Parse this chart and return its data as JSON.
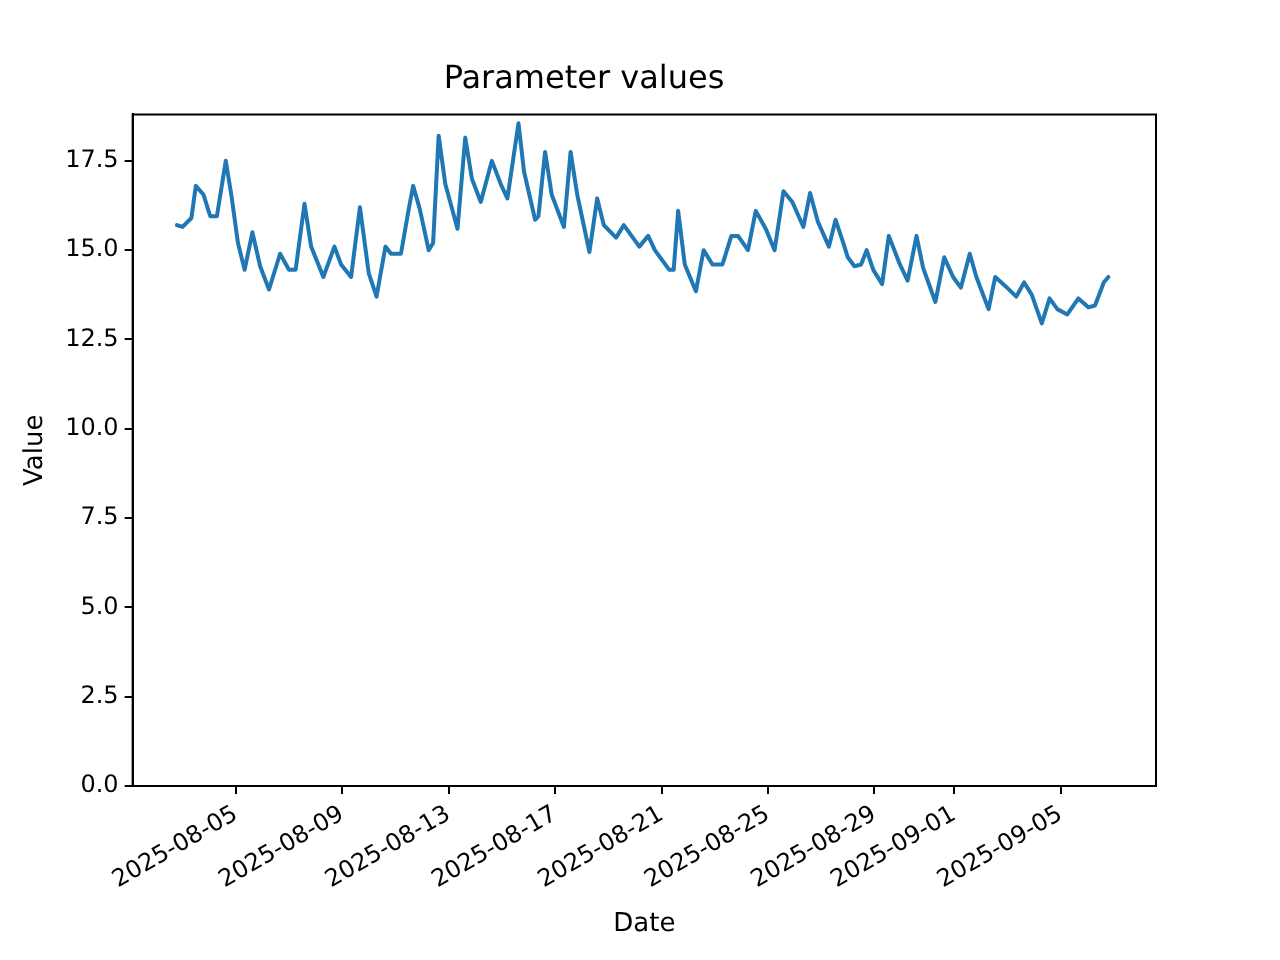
{
  "chart_data": {
    "type": "line",
    "title": "Parameter values",
    "xlabel": "Date",
    "ylabel": "Value",
    "x": [
      "2025-08-02T19:00",
      "2025-08-03T00:00",
      "2025-08-03T08:00",
      "2025-08-03T12:00",
      "2025-08-03T19:00",
      "2025-08-04T01:00",
      "2025-08-04T07:00",
      "2025-08-04T15:00",
      "2025-08-04T20:00",
      "2025-08-05T02:00",
      "2025-08-05T08:00",
      "2025-08-05T15:00",
      "2025-08-05T22:00",
      "2025-08-06T06:00",
      "2025-08-06T16:00",
      "2025-08-07T00:00",
      "2025-08-07T06:00",
      "2025-08-07T14:00",
      "2025-08-07T20:00",
      "2025-08-08T07:00",
      "2025-08-08T17:00",
      "2025-08-08T23:00",
      "2025-08-09T08:00",
      "2025-08-09T16:00",
      "2025-08-10T00:00",
      "2025-08-10T07:00",
      "2025-08-10T15:00",
      "2025-08-10T20:00",
      "2025-08-11T05:00",
      "2025-08-11T12:00",
      "2025-08-11T16:00",
      "2025-08-11T22:00",
      "2025-08-12T06:00",
      "2025-08-12T10:00",
      "2025-08-12T15:00",
      "2025-08-12T21:00",
      "2025-08-13T08:00",
      "2025-08-13T15:00",
      "2025-08-13T21:00",
      "2025-08-14T05:00",
      "2025-08-14T15:00",
      "2025-08-14T23:00",
      "2025-08-15T05:00",
      "2025-08-15T15:00",
      "2025-08-15T20:00",
      "2025-08-16T06:00",
      "2025-08-16T09:00",
      "2025-08-16T15:00",
      "2025-08-16T21:00",
      "2025-08-17T08:00",
      "2025-08-17T14:00",
      "2025-08-17T20:00",
      "2025-08-18T07:00",
      "2025-08-18T14:00",
      "2025-08-18T20:00",
      "2025-08-19T07:00",
      "2025-08-19T14:00",
      "2025-08-19T21:00",
      "2025-08-20T04:00",
      "2025-08-20T12:00",
      "2025-08-20T18:00",
      "2025-08-21T07:00",
      "2025-08-21T11:00",
      "2025-08-21T15:00",
      "2025-08-21T21:00",
      "2025-08-22T07:00",
      "2025-08-22T14:00",
      "2025-08-22T22:00",
      "2025-08-23T07:00",
      "2025-08-23T15:00",
      "2025-08-23T21:00",
      "2025-08-24T06:00",
      "2025-08-24T13:00",
      "2025-08-24T22:00",
      "2025-08-25T06:00",
      "2025-08-25T14:00",
      "2025-08-25T22:00",
      "2025-08-26T08:00",
      "2025-08-26T14:00",
      "2025-08-26T21:00",
      "2025-08-27T07:00",
      "2025-08-27T13:00",
      "2025-08-27T20:00",
      "2025-08-28T00:00",
      "2025-08-28T06:00",
      "2025-08-28T12:00",
      "2025-08-28T17:00",
      "2025-08-28T23:00",
      "2025-08-29T07:00",
      "2025-08-29T13:00",
      "2025-08-29T23:00",
      "2025-08-30T06:00",
      "2025-08-30T14:00",
      "2025-08-30T20:00",
      "2025-08-31T07:00",
      "2025-08-31T15:00",
      "2025-08-31T23:00",
      "2025-09-01T06:00",
      "2025-09-01T14:00",
      "2025-09-01T20:00",
      "2025-09-02T07:00",
      "2025-09-02T13:00",
      "2025-09-02T22:00",
      "2025-09-03T08:00",
      "2025-09-03T15:00",
      "2025-09-03T22:00",
      "2025-09-04T07:00",
      "2025-09-04T14:00",
      "2025-09-04T21:00",
      "2025-09-05T06:00",
      "2025-09-05T16:00",
      "2025-09-06T01:00",
      "2025-09-06T07:00",
      "2025-09-06T15:00",
      "2025-09-06T19:00"
    ],
    "series": [
      {
        "color": "#1f77b4",
        "values": [
          15.7,
          15.65,
          15.9,
          16.8,
          16.55,
          15.95,
          15.95,
          17.5,
          16.55,
          15.2,
          14.45,
          15.5,
          14.55,
          13.9,
          14.9,
          14.45,
          14.45,
          16.3,
          15.1,
          14.25,
          15.1,
          14.6,
          14.25,
          16.2,
          14.35,
          13.7,
          15.1,
          14.9,
          14.9,
          16.15,
          16.8,
          16.15,
          15.0,
          15.2,
          18.2,
          16.85,
          15.6,
          18.15,
          17.0,
          16.35,
          17.5,
          16.85,
          16.45,
          18.55,
          17.2,
          15.85,
          15.95,
          17.75,
          16.55,
          15.65,
          17.75,
          16.55,
          14.95,
          16.45,
          15.7,
          15.35,
          15.7,
          15.4,
          15.1,
          15.4,
          15.0,
          14.45,
          14.45,
          16.1,
          14.6,
          13.85,
          15.0,
          14.6,
          14.6,
          15.4,
          15.4,
          15.0,
          16.1,
          15.6,
          15.0,
          16.65,
          16.35,
          15.65,
          16.6,
          15.8,
          15.1,
          15.85,
          15.2,
          14.8,
          14.55,
          14.6,
          15.0,
          14.45,
          14.05,
          15.4,
          14.6,
          14.15,
          15.4,
          14.5,
          13.55,
          14.8,
          14.25,
          13.95,
          14.9,
          14.25,
          13.35,
          14.25,
          14.0,
          13.7,
          14.1,
          13.75,
          12.95,
          13.65,
          13.35,
          13.2,
          13.65,
          13.4,
          13.45,
          14.1,
          14.25
        ]
      }
    ],
    "xlim": [
      "2025-08-01T03:00",
      "2025-09-08T14:00"
    ],
    "xticks": [
      "2025-08-05",
      "2025-08-09",
      "2025-08-13",
      "2025-08-17",
      "2025-08-21",
      "2025-08-25",
      "2025-08-29",
      "2025-09-01",
      "2025-09-05"
    ],
    "ylim": [
      0,
      18.8
    ],
    "yticks": [
      {
        "value": 0,
        "label": "0.0"
      },
      {
        "value": 2.5,
        "label": "2.5"
      },
      {
        "value": 5,
        "label": "5.0"
      },
      {
        "value": 7.5,
        "label": "7.5"
      },
      {
        "value": 10,
        "label": "10.0"
      },
      {
        "value": 12.5,
        "label": "12.5"
      },
      {
        "value": 15,
        "label": "15.0"
      },
      {
        "value": 17.5,
        "label": "17.5"
      }
    ],
    "grid": false
  }
}
